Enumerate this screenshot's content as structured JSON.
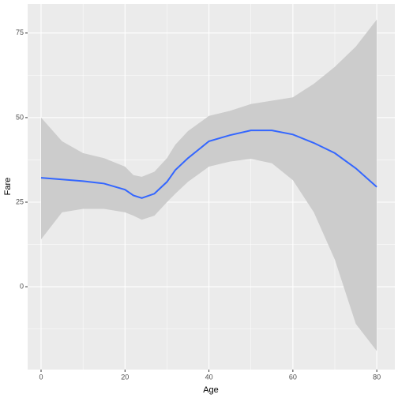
{
  "chart_data": {
    "type": "smooth",
    "x_label": "Age",
    "y_label": "Fare",
    "x": [
      0,
      5,
      10,
      15,
      20,
      22,
      24,
      27,
      30,
      32,
      35,
      40,
      45,
      50,
      55,
      60,
      65,
      70,
      75,
      80
    ],
    "series": [
      {
        "color": "#3366ff",
        "values": [
          32.2,
          31.7,
          31.2,
          30.5,
          28.7,
          27,
          26.2,
          27.5,
          31,
          34.5,
          38,
          43,
          44.8,
          46.2,
          46.2,
          45,
          42.5,
          39.5,
          35,
          29.5
        ]
      }
    ],
    "ribbon": {
      "color": "#cccccc",
      "upper": [
        50,
        43,
        39.5,
        38,
        35.5,
        33,
        32.5,
        34,
        38,
        42,
        46,
        50.5,
        52,
        54,
        55,
        56,
        60,
        65,
        71,
        79
      ],
      "lower": [
        14,
        22,
        23,
        23,
        22,
        21,
        19.8,
        21,
        25,
        27.5,
        31,
        35.5,
        37,
        37.8,
        36.5,
        31.5,
        22,
        8,
        -11,
        -19
      ]
    },
    "xlim": [
      -3.2,
      84.3
    ],
    "ylim": [
      -24.5,
      83.6
    ],
    "xticks": [
      0,
      20,
      40,
      60,
      80
    ],
    "yticks": [
      0,
      25,
      50,
      75
    ],
    "x_minor_breaks": [
      10,
      30,
      50,
      70
    ],
    "y_minor_breaks": [
      -12.5,
      12.5,
      37.5,
      62.5,
      87.5
    ],
    "grid": true
  }
}
